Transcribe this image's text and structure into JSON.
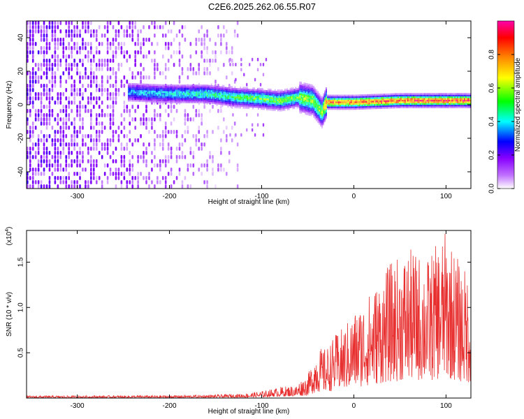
{
  "title": "C2E6.2025.262.06.55.R07",
  "chart_data": [
    {
      "type": "heatmap",
      "name": "spectrogram",
      "xlabel": "Height of straight line (km)",
      "ylabel": "Frequency (Hz)",
      "xlim": [
        -355,
        127
      ],
      "ylim": [
        -50,
        50
      ],
      "xticks": [
        -300,
        -200,
        -100,
        0,
        100
      ],
      "xtick_labels": [
        "-300",
        "-200",
        "-100",
        "0",
        "100"
      ],
      "yticks": [
        -40,
        -20,
        0,
        20,
        40
      ],
      "ytick_labels": [
        "-40",
        "-20",
        "0",
        "20",
        "40"
      ],
      "colorbar": {
        "label": "Normalized spectral amplitude",
        "range": [
          0,
          1
        ],
        "ticks": [
          0.0,
          0.2,
          0.4,
          0.6,
          0.8
        ],
        "tick_labels": [
          "0.0",
          "0.2",
          "0.4",
          "0.6",
          "0.8"
        ],
        "colormap": [
          "#ffffff",
          "#8800ff",
          "#0000ff",
          "#00ffff",
          "#00ff00",
          "#ffff00",
          "#ff8800",
          "#ff0000",
          "#ff00aa"
        ]
      },
      "noise_region_x": [
        -355,
        -135
      ],
      "signal_band": {
        "x": [
          -245,
          -200,
          -160,
          -130,
          -100,
          -80,
          -60,
          -45,
          -35,
          -30,
          0,
          50,
          100,
          127
        ],
        "center_freq": [
          7,
          6,
          6,
          4,
          3,
          2,
          4,
          2,
          -5,
          1,
          1,
          2,
          2,
          2
        ],
        "amplitude": [
          0.35,
          0.4,
          0.45,
          0.5,
          0.55,
          0.55,
          0.55,
          0.6,
          0.6,
          0.85,
          0.85,
          0.9,
          0.9,
          0.9
        ]
      }
    },
    {
      "type": "line",
      "name": "snr",
      "xlabel": "Height of straight line (km)",
      "ylabel": "SNR (10 * v/v)",
      "multiplier": "(x10",
      "multiplier_exp": "4",
      "multiplier_close": ")",
      "xlim": [
        -355,
        127
      ],
      "ylim": [
        0,
        1.85
      ],
      "xticks": [
        -300,
        -200,
        -100,
        0,
        100
      ],
      "xtick_labels": [
        "-300",
        "-200",
        "-100",
        "0",
        "100"
      ],
      "yticks": [
        0.5,
        1.0,
        1.5
      ],
      "ytick_labels": [
        "0.5",
        "1.0",
        "1.5"
      ],
      "color": "#e83030",
      "envelope": {
        "x": [
          -355,
          -200,
          -150,
          -120,
          -100,
          -80,
          -60,
          -50,
          -40,
          -30,
          -20,
          -10,
          0,
          20,
          40,
          60,
          80,
          100,
          115,
          127
        ],
        "y": [
          0.03,
          0.035,
          0.045,
          0.06,
          0.09,
          0.15,
          0.18,
          0.25,
          0.55,
          0.55,
          0.7,
          0.8,
          0.95,
          1.2,
          1.5,
          1.65,
          1.55,
          1.85,
          1.5,
          1.35
        ]
      }
    }
  ]
}
